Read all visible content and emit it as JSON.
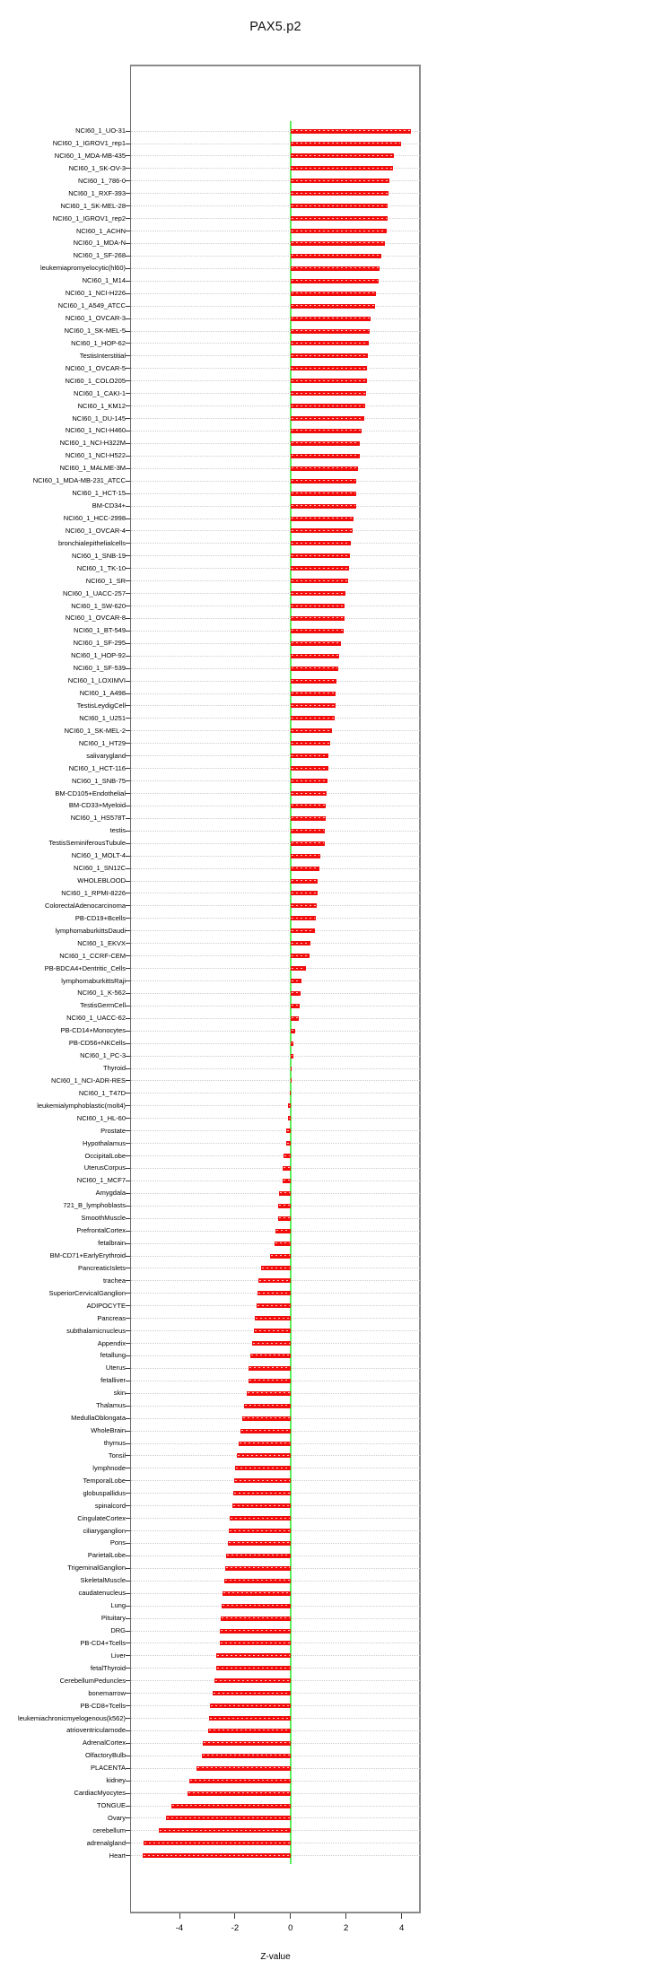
{
  "colors": {
    "bar": "#f20d0d",
    "zero_line": "#5ced5c",
    "gridline": "#cdcdcd",
    "frame": "#8a8a8a",
    "text": "#000000"
  },
  "chart_data": {
    "type": "bar",
    "orientation": "horizontal",
    "title": "PAX5.p2",
    "xlabel": "Z-value",
    "ylabel": "",
    "x_ticks": [
      -4,
      -2,
      0,
      2,
      4
    ],
    "xlim": [
      -5.78,
      4.69
    ],
    "grid": "dotted horizontal per category",
    "legend": "none",
    "zero_reference_line": true,
    "categories": [
      "NCI60_1_UO-31",
      "NCI60_1_IGROV1_rep1",
      "NCI60_1_MDA-MB-435",
      "NCI60_1_SK-OV-3",
      "NCI60_1_786-0",
      "NCI60_1_RXF-393",
      "NCI60_1_SK-MEL-28",
      "NCI60_1_IGROV1_rep2",
      "NCI60_1_ACHN",
      "NCI60_1_MDA-N",
      "NCI60_1_SF-268",
      "leukemiapromyelocytic(hl60)",
      "NCI60_1_M14",
      "NCI60_1_NCI-H226",
      "NCI60_1_A549_ATCC",
      "NCI60_1_OVCAR-3",
      "NCI60_1_SK-MEL-5",
      "NCI60_1_HOP-62",
      "TestisInterstitial",
      "NCI60_1_OVCAR-5",
      "NCI60_1_COLO205",
      "NCI60_1_CAKI-1",
      "NCI60_1_KM12",
      "NCI60_1_DU-145",
      "NCI60_1_NCI-H460",
      "NCI60_1_NCI-H322M",
      "NCI60_1_NCI-H522",
      "NCI60_1_MALME-3M",
      "NCI60_1_MDA-MB-231_ATCC",
      "NCI60_1_HCT-15",
      "BM-CD34+",
      "NCI60_1_HCC-2998",
      "NCI60_1_OVCAR-4",
      "bronchialepithelialcells",
      "NCI60_1_SNB-19",
      "NCI60_1_TK-10",
      "NCI60_1_SR",
      "NCI60_1_UACC-257",
      "NCI60_1_SW-620",
      "NCI60_1_OVCAR-8",
      "NCI60_1_BT-549",
      "NCI60_1_SF-295",
      "NCI60_1_HOP-92",
      "NCI60_1_SF-539",
      "NCI60_1_LOXIMVI",
      "NCI60_1_A498",
      "TestisLeydigCell",
      "NCI60_1_U251",
      "NCI60_1_SK-MEL-2",
      "NCI60_1_HT29",
      "salivarygland",
      "NCI60_1_HCT-116",
      "NCI60_1_SNB-75",
      "BM-CD105+Endothelial",
      "BM-CD33+Myeloid",
      "NCI60_1_HS578T",
      "testis",
      "TestisSeminiferousTubule",
      "NCI60_1_MOLT-4",
      "NCI60_1_SN12C",
      "WHOLEBLOOD",
      "NCI60_1_RPMI-8226",
      "ColorectalAdenocarcinoma",
      "PB-CD19+Bcells",
      "lymphomaburkittsDaudi",
      "NCI60_1_EKVX",
      "NCI60_1_CCRF-CEM",
      "PB-BDCA4+Dentritic_Cells",
      "lymphomaburkittsRaji",
      "NCI60_1_K-562",
      "TestisGermCell",
      "NCI60_1_UACC-62",
      "PB-CD14+Monocytes",
      "PB-CD56+NKCells",
      "NCI60_1_PC-3",
      "Thyroid",
      "NCI60_1_NCI-ADR-RES",
      "NCI60_1_T47D",
      "leukemialymphoblastic(molt4)",
      "NCI60_1_HL-60",
      "Prostate",
      "Hypothalamus",
      "OccipitalLobe",
      "UterusCorpus",
      "NCI60_1_MCF7",
      "Amygdala",
      "721_B_lymphoblasts",
      "SmoothMuscle",
      "PrefrontalCortex",
      "fetalbrain",
      "BM-CD71+EarlyErythroid",
      "PancreaticIslets",
      "trachea",
      "SuperiorCervicalGanglion",
      "ADIPOCYTE",
      "Pancreas",
      "subthalamicnucleus",
      "Appendix",
      "fetallung",
      "Uterus",
      "fetalliver",
      "skin",
      "Thalamus",
      "MedullaOblongata",
      "WholeBrain",
      "thymus",
      "Tonsil",
      "lymphnode",
      "TemporalLobe",
      "globuspallidus",
      "spinalcord",
      "CingulateCortex",
      "ciliaryganglion",
      "Pons",
      "ParietalLobe",
      "TrigeminalGanglion",
      "SkeletalMuscle",
      "caudatenucleus",
      "Lung",
      "Pituitary",
      "DRG",
      "PB-CD4+Tcells",
      "Liver",
      "fetalThyroid",
      "CerebellumPeduncles",
      "bonemarrow",
      "PB-CD8+Tcells",
      "leukemiachronicmyelogenous(k562)",
      "atrioventricularnode",
      "AdrenalCortex",
      "OlfactoryBulb",
      "PLACENTA",
      "kidney",
      "CardiacMyocytes",
      "TONGUE",
      "Ovary",
      "cerebellum",
      "adrenalgland",
      "Heart"
    ],
    "values": [
      4.34,
      3.97,
      3.73,
      3.68,
      3.57,
      3.54,
      3.5,
      3.48,
      3.46,
      3.4,
      3.27,
      3.21,
      3.16,
      3.08,
      3.03,
      2.89,
      2.86,
      2.82,
      2.78,
      2.76,
      2.74,
      2.73,
      2.68,
      2.65,
      2.57,
      2.51,
      2.48,
      2.44,
      2.38,
      2.37,
      2.35,
      2.28,
      2.22,
      2.16,
      2.14,
      2.1,
      2.08,
      1.98,
      1.94,
      1.93,
      1.92,
      1.81,
      1.76,
      1.71,
      1.67,
      1.63,
      1.62,
      1.6,
      1.49,
      1.42,
      1.37,
      1.35,
      1.33,
      1.3,
      1.28,
      1.27,
      1.25,
      1.22,
      1.08,
      1.04,
      0.98,
      0.97,
      0.95,
      0.9,
      0.88,
      0.72,
      0.68,
      0.55,
      0.38,
      0.35,
      0.34,
      0.3,
      0.17,
      0.1,
      0.09,
      0.05,
      0.03,
      -0.02,
      -0.08,
      -0.1,
      -0.15,
      -0.16,
      -0.25,
      -0.29,
      -0.3,
      -0.42,
      -0.43,
      -0.44,
      -0.55,
      -0.56,
      -0.74,
      -1.05,
      -1.16,
      -1.2,
      -1.22,
      -1.3,
      -1.32,
      -1.39,
      -1.45,
      -1.51,
      -1.52,
      -1.58,
      -1.68,
      -1.75,
      -1.8,
      -1.88,
      -1.93,
      -2.0,
      -2.03,
      -2.07,
      -2.1,
      -2.19,
      -2.22,
      -2.26,
      -2.32,
      -2.35,
      -2.4,
      -2.45,
      -2.49,
      -2.52,
      -2.55,
      -2.56,
      -2.68,
      -2.69,
      -2.74,
      -2.82,
      -2.9,
      -2.94,
      -2.95,
      -3.15,
      -3.18,
      -3.38,
      -3.64,
      -3.7,
      -4.3,
      -4.49,
      -4.75,
      -5.3,
      -5.33
    ]
  }
}
